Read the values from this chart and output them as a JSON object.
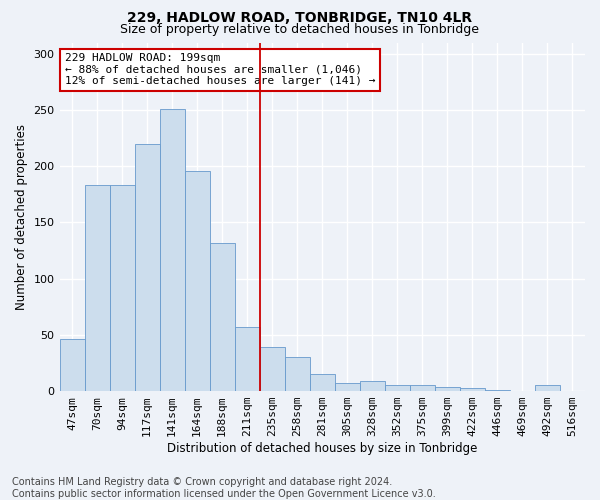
{
  "title": "229, HADLOW ROAD, TONBRIDGE, TN10 4LR",
  "subtitle": "Size of property relative to detached houses in Tonbridge",
  "xlabel": "Distribution of detached houses by size in Tonbridge",
  "ylabel": "Number of detached properties",
  "bar_color": "#ccdded",
  "bar_edge_color": "#6699cc",
  "categories": [
    "47sqm",
    "70sqm",
    "94sqm",
    "117sqm",
    "141sqm",
    "164sqm",
    "188sqm",
    "211sqm",
    "235sqm",
    "258sqm",
    "281sqm",
    "305sqm",
    "328sqm",
    "352sqm",
    "375sqm",
    "399sqm",
    "422sqm",
    "446sqm",
    "469sqm",
    "492sqm",
    "516sqm"
  ],
  "values": [
    46,
    183,
    183,
    220,
    251,
    196,
    132,
    57,
    39,
    30,
    15,
    7,
    9,
    5,
    5,
    4,
    3,
    1,
    0,
    5,
    0
  ],
  "ylim": [
    0,
    310
  ],
  "yticks": [
    0,
    50,
    100,
    150,
    200,
    250,
    300
  ],
  "property_line_index": 7,
  "annotation_line1": "229 HADLOW ROAD: 199sqm",
  "annotation_line2": "← 88% of detached houses are smaller (1,046)",
  "annotation_line3": "12% of semi-detached houses are larger (141) →",
  "annotation_box_color": "#ffffff",
  "annotation_box_edgecolor": "#cc0000",
  "line_color": "#cc0000",
  "footer_line1": "Contains HM Land Registry data © Crown copyright and database right 2024.",
  "footer_line2": "Contains public sector information licensed under the Open Government Licence v3.0.",
  "background_color": "#eef2f8",
  "grid_color": "#ffffff",
  "title_fontsize": 10,
  "subtitle_fontsize": 9,
  "axis_label_fontsize": 8.5,
  "tick_fontsize": 8,
  "footer_fontsize": 7
}
